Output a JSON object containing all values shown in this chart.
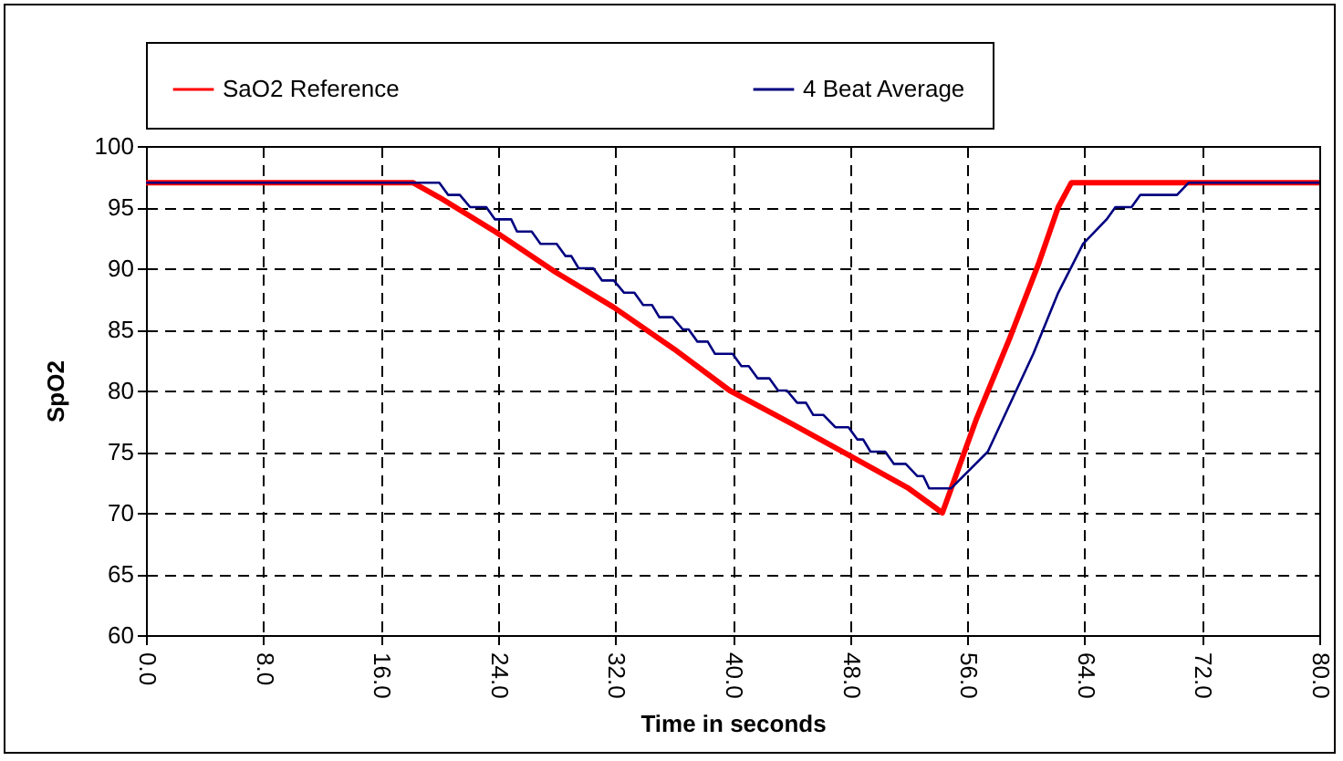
{
  "chart_data": {
    "type": "line",
    "xlabel": "Time in seconds",
    "ylabel": "SpO2",
    "xlim": [
      0,
      80
    ],
    "xticks": [
      {
        "value": 0,
        "label": "0.0"
      },
      {
        "value": 8,
        "label": "8.0"
      },
      {
        "value": 16,
        "label": "16.0"
      },
      {
        "value": 24,
        "label": "24.0"
      },
      {
        "value": 32,
        "label": "32.0"
      },
      {
        "value": 40,
        "label": "40.0"
      },
      {
        "value": 48,
        "label": "48.0"
      },
      {
        "value": 56,
        "label": "56.0"
      },
      {
        "value": 64,
        "label": "64.0"
      },
      {
        "value": 72,
        "label": "72.0"
      },
      {
        "value": 80,
        "label": "80.0"
      }
    ],
    "ylim": [
      60,
      100
    ],
    "yticks": [
      60,
      65,
      70,
      75,
      80,
      85,
      90,
      95,
      100
    ],
    "grid": true,
    "legend": "top",
    "line_style": "solid",
    "series": [
      {
        "name": "SaO2 Reference",
        "color": "#ff0000",
        "x": [
          0,
          18.2,
          20,
          23.8,
          27.9,
          31.9,
          36,
          39.8,
          44,
          48.1,
          52,
          54.3,
          56.6,
          58.9,
          60.9,
          62.2,
          63.1,
          80
        ],
        "values": [
          97,
          97,
          95.8,
          93,
          89.7,
          86.8,
          83.4,
          80,
          77.3,
          74.6,
          72,
          70,
          77.6,
          84.3,
          90.5,
          95,
          97,
          97
        ]
      },
      {
        "name": "4 Beat Average",
        "color": "#000080",
        "x": [
          0,
          20,
          20.6,
          21.4,
          22.1,
          23.2,
          23.8,
          24.9,
          25.3,
          26.3,
          26.9,
          28,
          28.6,
          29,
          29.5,
          30.5,
          31.1,
          31.9,
          32.6,
          33.3,
          33.9,
          34.5,
          35,
          35.9,
          36.6,
          37,
          37.6,
          38.3,
          38.8,
          40,
          40.6,
          41.1,
          41.7,
          42.5,
          43.1,
          43.7,
          44.4,
          45,
          45.5,
          46.2,
          47,
          47.9,
          48.5,
          48.9,
          49.4,
          50.4,
          51,
          51.8,
          52.6,
          53,
          53.4,
          54.9,
          57.4,
          60.5,
          62.2,
          63.9,
          65.5,
          66.1,
          67.2,
          67.8,
          70.3,
          71.1,
          80
        ],
        "values": [
          97,
          97,
          96,
          96,
          95,
          95,
          94,
          94,
          93,
          93,
          92,
          92,
          91,
          91,
          90,
          90,
          89,
          89,
          88,
          88,
          87,
          87,
          86,
          86,
          85,
          85,
          84,
          84,
          83,
          83,
          82,
          82,
          81,
          81,
          80,
          80,
          79,
          79,
          78,
          78,
          77,
          77,
          76,
          76,
          75,
          75,
          74,
          74,
          73,
          73,
          72,
          72,
          75,
          83,
          88,
          92,
          94,
          95,
          95,
          96,
          96,
          97,
          97
        ]
      }
    ]
  }
}
